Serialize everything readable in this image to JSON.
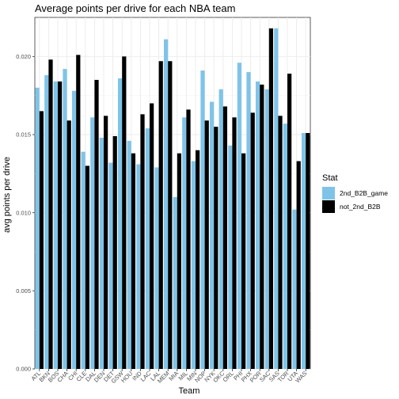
{
  "chart_data": {
    "type": "bar",
    "title": "Average points per drive for each NBA team",
    "xlabel": "Team",
    "ylabel": "avg points per drive",
    "ylim": [
      0,
      0.0225
    ],
    "yticks": [
      0.0,
      0.005,
      0.01,
      0.015,
      0.02
    ],
    "ytick_labels": [
      "0.000",
      "0.005",
      "0.010",
      "0.015",
      "0.020"
    ],
    "grid": true,
    "legend_position": "right",
    "legend_title": "Stat",
    "categories": [
      "ATL",
      "BKN",
      "BOS",
      "CHA",
      "CHI",
      "CLE",
      "DAL",
      "DEN",
      "DET",
      "GSW",
      "HOU",
      "IND",
      "LAC",
      "LAL",
      "MEM",
      "MIA",
      "MIL",
      "MIN",
      "NOP",
      "NYK",
      "OKC",
      "ORL",
      "PHI",
      "PHX",
      "POR",
      "SAC",
      "SAS",
      "TOR",
      "UTA",
      "WAS"
    ],
    "series": [
      {
        "name": "2nd_B2B_game",
        "color": "#7fc4e8",
        "values": [
          0.018,
          0.0188,
          0.0184,
          0.0192,
          0.0178,
          0.0139,
          0.0161,
          0.0148,
          0.0132,
          0.0186,
          0.0146,
          0.0131,
          0.0154,
          0.0129,
          0.0211,
          0.011,
          0.0161,
          0.0133,
          0.0191,
          0.0171,
          0.0179,
          0.0143,
          0.0196,
          0.019,
          0.0184,
          0.0179,
          0.0218,
          0.0157,
          0.0102,
          0.0151
        ]
      },
      {
        "name": "not_2nd_B2B",
        "color": "#000000",
        "values": [
          0.0165,
          0.0198,
          0.0184,
          0.0159,
          0.0201,
          0.013,
          0.0185,
          0.0162,
          0.0149,
          0.02,
          0.0138,
          0.0163,
          0.017,
          0.0197,
          0.0197,
          0.0138,
          0.0166,
          0.014,
          0.0159,
          0.0155,
          0.0168,
          0.0161,
          0.0138,
          0.0164,
          0.0182,
          0.0218,
          0.0162,
          0.0189,
          0.0133,
          0.0151
        ]
      }
    ]
  }
}
